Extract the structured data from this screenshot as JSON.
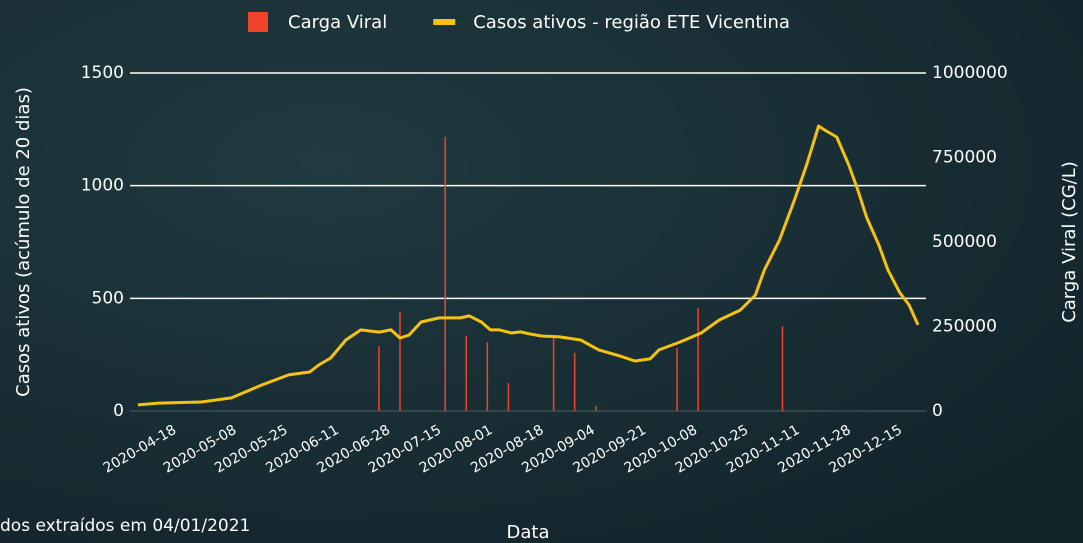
{
  "chart_data": {
    "type": "line",
    "x_label": "Data",
    "y_label": "Casos ativos (acúmulo de 20 dias)",
    "y2_label": "Carga Viral (CG/L)",
    "note": "dos extraídos em 04/01/2021",
    "xlim": [
      "2020-04-07",
      "2020-12-22"
    ],
    "xticks": [
      "2020-04-18",
      "2020-05-08",
      "2020-05-25",
      "2020-06-11",
      "2020-06-28",
      "2020-07-15",
      "2020-08-01",
      "2020-08-18",
      "2020-09-04",
      "2020-09-21",
      "2020-10-08",
      "2020-10-25",
      "2020-11-11",
      "2020-11-28",
      "2020-12-15"
    ],
    "ylim": [
      0,
      1500
    ],
    "yticks": [
      0,
      500,
      1000,
      1500
    ],
    "y2lim": [
      0,
      1000000
    ],
    "y2ticks": [
      0,
      250000,
      500000,
      750000,
      1000000
    ],
    "grid": true,
    "legend": "top",
    "series": [
      {
        "name": "Carga Viral",
        "type": "bar",
        "axis": "y2",
        "color": "#f0432c",
        "x": [
          "2020-06-26",
          "2020-07-03",
          "2020-07-18",
          "2020-07-25",
          "2020-08-01",
          "2020-08-08",
          "2020-08-23",
          "2020-08-30",
          "2020-09-06",
          "2020-10-03",
          "2020-10-10",
          "2020-11-07"
        ],
        "values": [
          192000,
          293000,
          811000,
          222000,
          204000,
          83000,
          219000,
          172000,
          15000,
          186000,
          305000,
          251000
        ]
      },
      {
        "name": "Casos ativos - região ETE Vicentina",
        "type": "line",
        "color": "#f5c211",
        "x": [
          "2020-04-07",
          "2020-04-14",
          "2020-04-28",
          "2020-05-08",
          "2020-05-18",
          "2020-05-27",
          "2020-06-03",
          "2020-06-06",
          "2020-06-10",
          "2020-06-15",
          "2020-06-20",
          "2020-06-26",
          "2020-06-30",
          "2020-07-03",
          "2020-07-06",
          "2020-07-10",
          "2020-07-16",
          "2020-07-23",
          "2020-07-26",
          "2020-07-30",
          "2020-08-02",
          "2020-08-05",
          "2020-08-09",
          "2020-08-12",
          "2020-08-15",
          "2020-08-19",
          "2020-08-25",
          "2020-09-01",
          "2020-09-07",
          "2020-09-14",
          "2020-09-19",
          "2020-09-24",
          "2020-09-27",
          "2020-10-04",
          "2020-10-11",
          "2020-10-17",
          "2020-10-24",
          "2020-10-29",
          "2020-11-01",
          "2020-11-06",
          "2020-11-11",
          "2020-11-15",
          "2020-11-19",
          "2020-11-21",
          "2020-11-25",
          "2020-11-29",
          "2020-12-02",
          "2020-12-05",
          "2020-12-09",
          "2020-12-12",
          "2020-12-16",
          "2020-12-19",
          "2020-12-22"
        ],
        "values": [
          27,
          35,
          40,
          58,
          115,
          160,
          173,
          204,
          235,
          315,
          360,
          350,
          360,
          324,
          337,
          395,
          413,
          413,
          422,
          395,
          360,
          360,
          346,
          351,
          342,
          333,
          329,
          315,
          271,
          244,
          222,
          231,
          271,
          306,
          346,
          404,
          448,
          515,
          626,
          759,
          937,
          1092,
          1265,
          1247,
          1216,
          1092,
          981,
          857,
          737,
          626,
          524,
          471,
          382
        ]
      }
    ]
  }
}
